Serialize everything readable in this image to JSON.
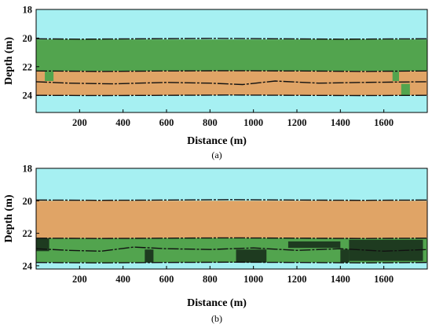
{
  "chart_data": [
    {
      "type": "heatmap",
      "caption": "(a)",
      "xlabel": "Distance (m)",
      "ylabel": "Depth (m)",
      "xlim": [
        0,
        1800
      ],
      "ylim": [
        18,
        25.2
      ],
      "y_inverted": true,
      "x_ticks": [
        200,
        400,
        600,
        800,
        1000,
        1200,
        1400,
        1600
      ],
      "y_ticks": [
        18,
        20,
        22,
        24
      ],
      "colors": {
        "background": "#a6f0f2",
        "green": "#52a44e",
        "orange": "#e0a466",
        "dark": "#1e3b20",
        "line": "#111111"
      },
      "layers": [
        {
          "color": "green",
          "x0": 0,
          "x1": 1800,
          "y0": 20.1,
          "y1": 22.3
        },
        {
          "color": "orange",
          "x0": 0,
          "x1": 1800,
          "y0": 22.3,
          "y1": 24.0
        },
        {
          "color": "green",
          "x0": 40,
          "x1": 80,
          "y0": 22.3,
          "y1": 23.0
        },
        {
          "color": "green",
          "x0": 1640,
          "x1": 1670,
          "y0": 22.3,
          "y1": 23.0
        },
        {
          "color": "green",
          "x0": 1680,
          "x1": 1720,
          "y0": 23.2,
          "y1": 24.0
        }
      ],
      "boundaries": [
        {
          "x": [
            0,
            200,
            500,
            800,
            1100,
            1400,
            1800
          ],
          "y": [
            20.05,
            20.08,
            20.05,
            20.02,
            20.05,
            20.08,
            20.05
          ]
        },
        {
          "x": [
            0,
            300,
            600,
            900,
            1200,
            1500,
            1800
          ],
          "y": [
            22.3,
            22.33,
            22.3,
            22.28,
            22.3,
            22.33,
            22.3
          ]
        },
        {
          "x": [
            0,
            150,
            350,
            600,
            800,
            950,
            1100,
            1300,
            1500,
            1800
          ],
          "y": [
            23.05,
            23.15,
            23.2,
            23.1,
            23.15,
            23.25,
            23.0,
            23.15,
            23.1,
            23.05
          ]
        },
        {
          "x": [
            0,
            300,
            600,
            900,
            1200,
            1500,
            1800
          ],
          "y": [
            24.0,
            24.02,
            24.0,
            23.98,
            24.0,
            24.02,
            24.0
          ]
        }
      ]
    },
    {
      "type": "heatmap",
      "caption": "(b)",
      "xlabel": "Distance (m)",
      "ylabel": "Depth (m)",
      "xlim": [
        0,
        1800
      ],
      "ylim": [
        18,
        24.2
      ],
      "y_inverted": true,
      "x_ticks": [
        200,
        400,
        600,
        800,
        1000,
        1200,
        1400,
        1600
      ],
      "y_ticks": [
        18,
        20,
        22,
        24
      ],
      "colors": {
        "background": "#a6f0f2",
        "green": "#52a44e",
        "orange": "#e0a466",
        "dark": "#1e3b20",
        "line": "#111111"
      },
      "layers": [
        {
          "color": "orange",
          "x0": 0,
          "x1": 1800,
          "y0": 20.0,
          "y1": 22.3
        },
        {
          "color": "green",
          "x0": 0,
          "x1": 1800,
          "y0": 22.3,
          "y1": 23.8
        },
        {
          "color": "dark",
          "x0": 0,
          "x1": 60,
          "y0": 22.3,
          "y1": 23.1
        },
        {
          "color": "dark",
          "x0": 500,
          "x1": 540,
          "y0": 23.0,
          "y1": 23.8
        },
        {
          "color": "dark",
          "x0": 920,
          "x1": 1060,
          "y0": 23.0,
          "y1": 23.8
        },
        {
          "color": "dark",
          "x0": 1400,
          "x1": 1440,
          "y0": 23.0,
          "y1": 23.8
        },
        {
          "color": "dark",
          "x0": 1440,
          "x1": 1780,
          "y0": 22.4,
          "y1": 23.7
        },
        {
          "color": "dark",
          "x0": 1160,
          "x1": 1400,
          "y0": 22.5,
          "y1": 22.9
        }
      ],
      "boundaries": [
        {
          "x": [
            0,
            300,
            600,
            900,
            1200,
            1500,
            1800
          ],
          "y": [
            19.95,
            19.97,
            19.95,
            19.93,
            19.95,
            19.97,
            19.95
          ]
        },
        {
          "x": [
            0,
            300,
            600,
            900,
            1200,
            1500,
            1800
          ],
          "y": [
            22.3,
            22.32,
            22.3,
            22.28,
            22.3,
            22.32,
            22.3
          ]
        },
        {
          "x": [
            0,
            150,
            300,
            450,
            600,
            800,
            1000,
            1200,
            1400,
            1600,
            1800
          ],
          "y": [
            22.95,
            23.05,
            23.1,
            22.85,
            22.95,
            23.0,
            22.9,
            23.05,
            22.95,
            23.1,
            23.0
          ]
        },
        {
          "x": [
            0,
            300,
            600,
            900,
            1200,
            1500,
            1800
          ],
          "y": [
            23.8,
            23.82,
            23.8,
            23.78,
            23.8,
            23.82,
            23.8
          ]
        }
      ]
    }
  ]
}
